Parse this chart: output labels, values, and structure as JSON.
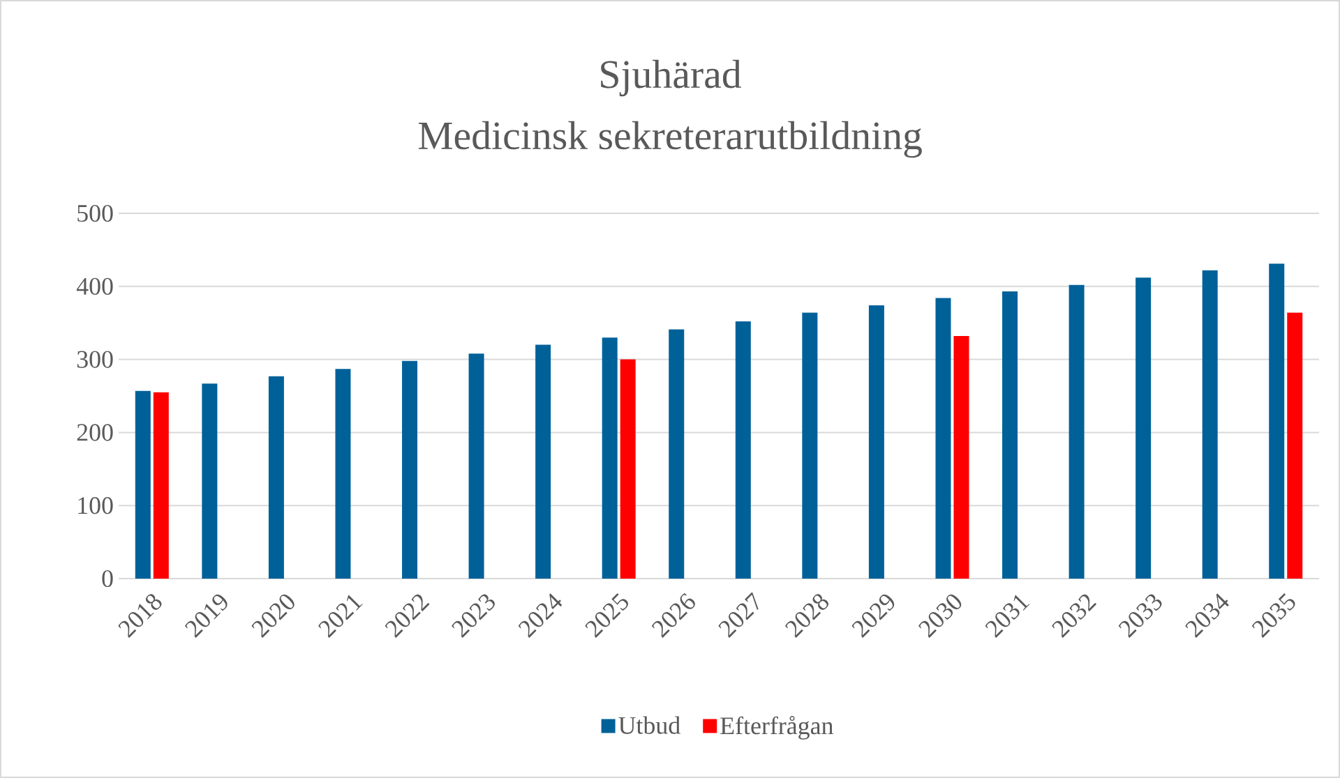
{
  "chart_data": {
    "type": "bar",
    "title": "Sjuhärad",
    "subtitle": "Medicinsk sekreterarutbildning",
    "categories": [
      "2018",
      "2019",
      "2020",
      "2021",
      "2022",
      "2023",
      "2024",
      "2025",
      "2026",
      "2027",
      "2028",
      "2029",
      "2030",
      "2031",
      "2032",
      "2033",
      "2034",
      "2035"
    ],
    "series": [
      {
        "name": "Utbud",
        "color": "#006199",
        "values": [
          257,
          267,
          277,
          287,
          298,
          308,
          320,
          330,
          341,
          352,
          364,
          374,
          384,
          393,
          402,
          412,
          422,
          431
        ]
      },
      {
        "name": "Efterfrågan",
        "color": "#ff0000",
        "values": [
          255,
          null,
          null,
          null,
          null,
          null,
          null,
          300,
          null,
          null,
          null,
          null,
          332,
          null,
          null,
          null,
          null,
          364
        ]
      }
    ],
    "ylim": [
      0,
      500
    ],
    "yticks": [
      0,
      100,
      200,
      300,
      400,
      500
    ],
    "grid": "y",
    "legend": "bottom"
  }
}
